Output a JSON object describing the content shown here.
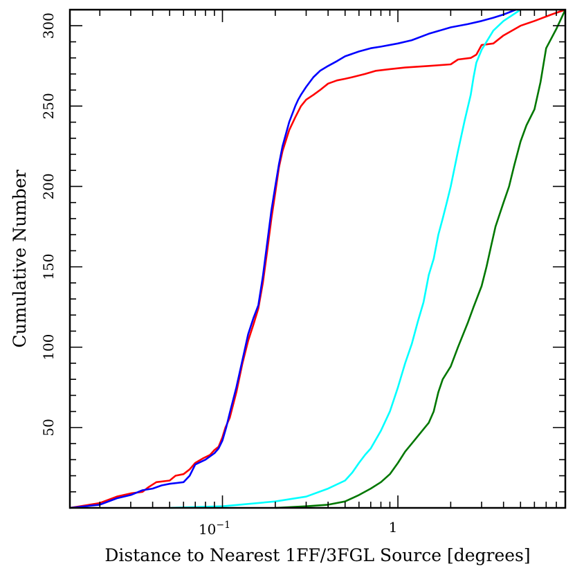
{
  "chart_data": {
    "type": "line",
    "xlabel": "Distance to Nearest 1FF/3FGL Source [degrees]",
    "ylabel": "Cumulative Number",
    "x_scale": "log",
    "xlim": [
      0.0135,
      9.0
    ],
    "ylim": [
      0,
      310
    ],
    "x_tick_labels": [
      {
        "value": 0.1,
        "base": "10",
        "exponent": "−1"
      },
      {
        "value": 1,
        "text": "1"
      }
    ],
    "y_ticks": [
      50,
      100,
      150,
      200,
      250,
      300
    ],
    "grid": false,
    "series": [
      {
        "color": "#ff0000",
        "x": [
          0.0135,
          0.02,
          0.025,
          0.03,
          0.035,
          0.038,
          0.042,
          0.05,
          0.054,
          0.06,
          0.065,
          0.07,
          0.078,
          0.085,
          0.09,
          0.095,
          0.1,
          0.104,
          0.11,
          0.12,
          0.13,
          0.14,
          0.15,
          0.16,
          0.17,
          0.18,
          0.19,
          0.2,
          0.21,
          0.22,
          0.24,
          0.26,
          0.28,
          0.3,
          0.33,
          0.36,
          0.4,
          0.45,
          0.5,
          0.55,
          0.65,
          0.75,
          0.9,
          1.1,
          1.5,
          2.0,
          2.2,
          2.6,
          2.8,
          3.0,
          3.5,
          4.0,
          5.0,
          6.0,
          7.5,
          9.0
        ],
        "values": [
          0,
          3,
          7,
          9,
          10,
          13,
          16,
          17,
          20,
          21,
          24,
          28,
          31,
          33,
          36,
          38,
          44,
          50,
          56,
          72,
          90,
          104,
          114,
          124,
          140,
          160,
          180,
          196,
          212,
          222,
          235,
          243,
          250,
          254,
          257,
          260,
          264,
          266,
          267,
          268,
          270,
          272,
          273,
          274,
          275,
          276,
          279,
          280,
          282,
          288,
          289,
          294,
          300,
          303,
          307,
          310
        ]
      },
      {
        "color": "#0000ff",
        "x": [
          0.0135,
          0.02,
          0.025,
          0.03,
          0.035,
          0.04,
          0.045,
          0.05,
          0.06,
          0.065,
          0.07,
          0.08,
          0.09,
          0.095,
          0.1,
          0.105,
          0.11,
          0.12,
          0.13,
          0.14,
          0.15,
          0.16,
          0.17,
          0.18,
          0.19,
          0.2,
          0.21,
          0.22,
          0.24,
          0.26,
          0.27,
          0.28,
          0.3,
          0.33,
          0.36,
          0.4,
          0.45,
          0.5,
          0.6,
          0.7,
          0.8,
          1.0,
          1.2,
          1.5,
          2.0,
          2.5,
          3.0,
          3.5,
          4.0,
          4.7
        ],
        "values": [
          0,
          2,
          6,
          8,
          11,
          12,
          14,
          15,
          16,
          20,
          27,
          30,
          34,
          37,
          42,
          50,
          59,
          75,
          92,
          108,
          118,
          126,
          144,
          165,
          185,
          200,
          214,
          225,
          240,
          250,
          254,
          257,
          262,
          268,
          272,
          275,
          278,
          281,
          284,
          286,
          287,
          289,
          291,
          295,
          299,
          301,
          303,
          305,
          307,
          310
        ]
      },
      {
        "color": "#00ffff",
        "x": [
          0.05,
          0.1,
          0.2,
          0.3,
          0.4,
          0.5,
          0.55,
          0.6,
          0.65,
          0.7,
          0.8,
          0.9,
          1.0,
          1.1,
          1.2,
          1.3,
          1.4,
          1.5,
          1.6,
          1.7,
          1.8,
          1.9,
          2.0,
          2.2,
          2.4,
          2.6,
          2.7,
          2.8,
          3.0,
          3.5,
          4.0,
          5.0
        ],
        "values": [
          0,
          1,
          4,
          7,
          12,
          17,
          22,
          28,
          33,
          37,
          48,
          60,
          75,
          90,
          102,
          116,
          128,
          145,
          155,
          170,
          180,
          190,
          200,
          222,
          241,
          257,
          268,
          277,
          285,
          297,
          303,
          310
        ]
      },
      {
        "color": "#007700",
        "x": [
          0.2,
          0.3,
          0.4,
          0.5,
          0.6,
          0.7,
          0.8,
          0.9,
          1.0,
          1.1,
          1.2,
          1.4,
          1.5,
          1.6,
          1.7,
          1.8,
          2.0,
          2.2,
          2.5,
          2.7,
          3.0,
          3.2,
          3.4,
          3.6,
          4.0,
          4.3,
          4.6,
          5.0,
          5.4,
          6.0,
          6.5,
          7.0,
          8.0,
          9.0
        ],
        "values": [
          0,
          1,
          2,
          4,
          8,
          12,
          16,
          21,
          28,
          35,
          40,
          49,
          53,
          60,
          72,
          80,
          88,
          100,
          115,
          125,
          138,
          150,
          163,
          175,
          190,
          200,
          213,
          228,
          238,
          248,
          265,
          286,
          298,
          310
        ]
      }
    ]
  }
}
